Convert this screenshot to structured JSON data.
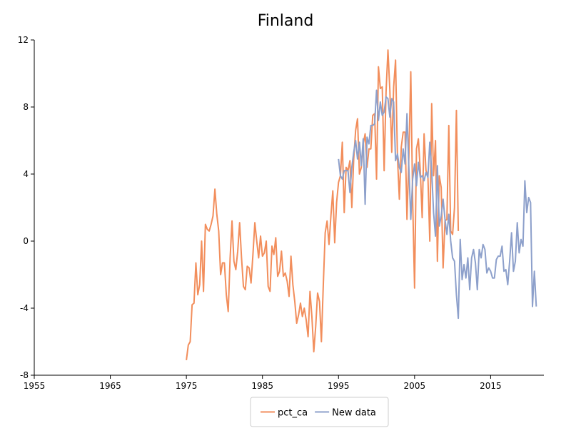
{
  "chart_data": {
    "type": "line",
    "title": "Finland",
    "xlabel": "",
    "ylabel": "",
    "xlim": [
      1955,
      2022
    ],
    "ylim": [
      -8,
      12
    ],
    "x_ticks": [
      1955,
      1965,
      1975,
      1985,
      1995,
      2005,
      2015
    ],
    "y_ticks": [
      -8,
      -4,
      0,
      4,
      8,
      12
    ],
    "grid": false,
    "legend_position": "bottom-center",
    "series": [
      {
        "name": "pct_ca",
        "color": "#f28e5c",
        "points": [
          [
            1975.0,
            -7.1
          ],
          [
            1975.25,
            -6.2
          ],
          [
            1975.5,
            -6.0
          ],
          [
            1975.75,
            -3.8
          ],
          [
            1976.0,
            -3.7
          ],
          [
            1976.25,
            -1.3
          ],
          [
            1976.5,
            -3.2
          ],
          [
            1976.75,
            -2.6
          ],
          [
            1977.0,
            0.0
          ],
          [
            1977.25,
            -3.0
          ],
          [
            1977.5,
            1.0
          ],
          [
            1977.75,
            0.7
          ],
          [
            1978.0,
            0.6
          ],
          [
            1978.25,
            1.0
          ],
          [
            1978.5,
            1.5
          ],
          [
            1978.75,
            3.1
          ],
          [
            1979.0,
            1.6
          ],
          [
            1979.25,
            0.6
          ],
          [
            1979.5,
            -2.0
          ],
          [
            1979.75,
            -1.3
          ],
          [
            1980.0,
            -1.3
          ],
          [
            1980.25,
            -3.2
          ],
          [
            1980.5,
            -4.2
          ],
          [
            1980.75,
            -1.0
          ],
          [
            1981.0,
            1.2
          ],
          [
            1981.25,
            -1.2
          ],
          [
            1981.5,
            -1.7
          ],
          [
            1981.75,
            -0.6
          ],
          [
            1982.0,
            1.1
          ],
          [
            1982.25,
            -1.0
          ],
          [
            1982.5,
            -2.7
          ],
          [
            1982.75,
            -2.9
          ],
          [
            1983.0,
            -1.5
          ],
          [
            1983.25,
            -1.6
          ],
          [
            1983.5,
            -2.5
          ],
          [
            1983.75,
            -0.8
          ],
          [
            1984.0,
            1.1
          ],
          [
            1984.25,
            0.0
          ],
          [
            1984.5,
            -1.0
          ],
          [
            1984.75,
            0.3
          ],
          [
            1985.0,
            -0.9
          ],
          [
            1985.25,
            -0.7
          ],
          [
            1985.5,
            0.0
          ],
          [
            1985.75,
            -2.7
          ],
          [
            1986.0,
            -3.0
          ],
          [
            1986.25,
            -0.3
          ],
          [
            1986.5,
            -0.8
          ],
          [
            1986.75,
            0.2
          ],
          [
            1987.0,
            -2.1
          ],
          [
            1987.25,
            -1.8
          ],
          [
            1987.5,
            -0.6
          ],
          [
            1987.75,
            -2.1
          ],
          [
            1988.0,
            -1.9
          ],
          [
            1988.25,
            -2.4
          ],
          [
            1988.5,
            -3.3
          ],
          [
            1988.75,
            -0.9
          ],
          [
            1989.0,
            -2.6
          ],
          [
            1989.25,
            -3.6
          ],
          [
            1989.5,
            -4.9
          ],
          [
            1989.75,
            -4.4
          ],
          [
            1990.0,
            -3.7
          ],
          [
            1990.25,
            -4.5
          ],
          [
            1990.5,
            -4.0
          ],
          [
            1990.75,
            -4.7
          ],
          [
            1991.0,
            -5.7
          ],
          [
            1991.25,
            -3.0
          ],
          [
            1991.5,
            -4.5
          ],
          [
            1991.75,
            -6.6
          ],
          [
            1992.0,
            -5.1
          ],
          [
            1992.25,
            -3.1
          ],
          [
            1992.5,
            -3.6
          ],
          [
            1992.75,
            -6.0
          ],
          [
            1993.0,
            -2.6
          ],
          [
            1993.25,
            0.5
          ],
          [
            1993.5,
            1.2
          ],
          [
            1993.75,
            -0.2
          ],
          [
            1994.0,
            1.5
          ],
          [
            1994.25,
            3.0
          ],
          [
            1994.5,
            -0.1
          ],
          [
            1994.75,
            2.3
          ],
          [
            1995.0,
            3.5
          ],
          [
            1995.25,
            3.9
          ],
          [
            1995.5,
            5.9
          ],
          [
            1995.75,
            1.7
          ],
          [
            1996.0,
            4.4
          ],
          [
            1996.25,
            4.2
          ],
          [
            1996.5,
            4.8
          ],
          [
            1996.75,
            2.0
          ],
          [
            1997.0,
            4.9
          ],
          [
            1997.25,
            6.6
          ],
          [
            1997.5,
            7.3
          ],
          [
            1997.75,
            4.0
          ],
          [
            1998.0,
            4.4
          ],
          [
            1998.25,
            5.8
          ],
          [
            1998.5,
            6.4
          ],
          [
            1998.75,
            4.4
          ],
          [
            1999.0,
            5.5
          ],
          [
            1999.25,
            5.5
          ],
          [
            1999.5,
            7.5
          ],
          [
            1999.75,
            7.6
          ],
          [
            2000.0,
            3.7
          ],
          [
            2000.25,
            10.4
          ],
          [
            2000.5,
            9.1
          ],
          [
            2000.75,
            9.2
          ],
          [
            2001.0,
            4.2
          ],
          [
            2001.25,
            8.9
          ],
          [
            2001.5,
            11.4
          ],
          [
            2001.75,
            9.0
          ],
          [
            2002.0,
            5.3
          ],
          [
            2002.25,
            9.2
          ],
          [
            2002.5,
            10.8
          ],
          [
            2002.75,
            5.0
          ],
          [
            2003.0,
            2.5
          ],
          [
            2003.25,
            5.6
          ],
          [
            2003.5,
            6.5
          ],
          [
            2003.75,
            6.5
          ],
          [
            2004.0,
            1.3
          ],
          [
            2004.25,
            5.0
          ],
          [
            2004.5,
            10.1
          ],
          [
            2004.75,
            2.4
          ],
          [
            2005.0,
            -2.8
          ],
          [
            2005.25,
            5.5
          ],
          [
            2005.5,
            6.1
          ],
          [
            2005.75,
            4.2
          ],
          [
            2006.0,
            1.4
          ],
          [
            2006.25,
            6.4
          ],
          [
            2006.5,
            4.2
          ],
          [
            2006.75,
            3.9
          ],
          [
            2007.0,
            0.0
          ],
          [
            2007.25,
            8.2
          ],
          [
            2007.5,
            3.9
          ],
          [
            2007.75,
            6.0
          ],
          [
            2008.0,
            -1.2
          ],
          [
            2008.25,
            3.9
          ],
          [
            2008.5,
            3.2
          ],
          [
            2008.75,
            -1.6
          ],
          [
            2009.0,
            1.2
          ],
          [
            2009.25,
            1.3
          ],
          [
            2009.5,
            6.9
          ],
          [
            2009.75,
            0.6
          ],
          [
            2010.0,
            0.4
          ],
          [
            2010.25,
            2.0
          ],
          [
            2010.5,
            7.8
          ],
          [
            2010.75,
            0.6
          ]
        ]
      },
      {
        "name": "New data",
        "color": "#8da0cb",
        "points": [
          [
            1995.0,
            4.9
          ],
          [
            1995.25,
            3.9
          ],
          [
            1995.5,
            3.7
          ],
          [
            1995.75,
            4.2
          ],
          [
            1996.0,
            4.2
          ],
          [
            1996.25,
            4.2
          ],
          [
            1996.5,
            2.9
          ],
          [
            1996.75,
            4.4
          ],
          [
            1997.0,
            5.3
          ],
          [
            1997.25,
            6.0
          ],
          [
            1997.5,
            4.9
          ],
          [
            1997.75,
            5.9
          ],
          [
            1998.0,
            4.5
          ],
          [
            1998.25,
            6.1
          ],
          [
            1998.5,
            2.2
          ],
          [
            1998.75,
            6.2
          ],
          [
            1999.0,
            5.8
          ],
          [
            1999.25,
            6.9
          ],
          [
            1999.5,
            6.9
          ],
          [
            1999.75,
            7.0
          ],
          [
            2000.0,
            9.0
          ],
          [
            2000.25,
            7.2
          ],
          [
            2000.5,
            8.3
          ],
          [
            2000.75,
            7.5
          ],
          [
            2001.0,
            7.7
          ],
          [
            2001.25,
            8.6
          ],
          [
            2001.5,
            8.5
          ],
          [
            2001.75,
            7.4
          ],
          [
            2002.0,
            8.5
          ],
          [
            2002.25,
            8.3
          ],
          [
            2002.5,
            4.8
          ],
          [
            2002.75,
            5.2
          ],
          [
            2003.0,
            4.4
          ],
          [
            2003.25,
            4.1
          ],
          [
            2003.5,
            5.5
          ],
          [
            2003.75,
            4.6
          ],
          [
            2004.0,
            7.6
          ],
          [
            2004.25,
            4.4
          ],
          [
            2004.5,
            1.3
          ],
          [
            2004.75,
            3.7
          ],
          [
            2005.0,
            4.6
          ],
          [
            2005.25,
            3.3
          ],
          [
            2005.5,
            4.7
          ],
          [
            2005.75,
            3.8
          ],
          [
            2006.0,
            3.9
          ],
          [
            2006.25,
            3.6
          ],
          [
            2006.5,
            4.1
          ],
          [
            2006.75,
            3.8
          ],
          [
            2007.0,
            5.9
          ],
          [
            2007.25,
            4.2
          ],
          [
            2007.5,
            1.7
          ],
          [
            2007.75,
            0.3
          ],
          [
            2008.0,
            4.5
          ],
          [
            2008.25,
            0.9
          ],
          [
            2008.5,
            1.5
          ],
          [
            2008.75,
            2.5
          ],
          [
            2009.0,
            1.3
          ],
          [
            2009.25,
            0.4
          ],
          [
            2009.5,
            1.6
          ],
          [
            2009.75,
            0.0
          ],
          [
            2010.0,
            -1.0
          ],
          [
            2010.25,
            -1.2
          ],
          [
            2010.5,
            -3.2
          ],
          [
            2010.75,
            -4.6
          ],
          [
            2011.0,
            0.1
          ],
          [
            2011.25,
            -2.3
          ],
          [
            2011.5,
            -1.4
          ],
          [
            2011.75,
            -2.2
          ],
          [
            2012.0,
            -1.0
          ],
          [
            2012.25,
            -2.9
          ],
          [
            2012.5,
            -1.0
          ],
          [
            2012.75,
            -0.5
          ],
          [
            2013.0,
            -1.3
          ],
          [
            2013.25,
            -2.9
          ],
          [
            2013.5,
            -0.5
          ],
          [
            2013.75,
            -1.0
          ],
          [
            2014.0,
            -0.2
          ],
          [
            2014.25,
            -0.5
          ],
          [
            2014.5,
            -1.9
          ],
          [
            2014.75,
            -1.6
          ],
          [
            2015.0,
            -1.8
          ],
          [
            2015.25,
            -2.2
          ],
          [
            2015.5,
            -2.2
          ],
          [
            2015.75,
            -1.1
          ],
          [
            2016.0,
            -0.9
          ],
          [
            2016.25,
            -0.9
          ],
          [
            2016.5,
            -0.3
          ],
          [
            2016.75,
            -1.8
          ],
          [
            2017.0,
            -1.7
          ],
          [
            2017.25,
            -2.6
          ],
          [
            2017.5,
            -1.2
          ],
          [
            2017.75,
            0.5
          ],
          [
            2018.0,
            -1.8
          ],
          [
            2018.25,
            -1.2
          ],
          [
            2018.5,
            1.1
          ],
          [
            2018.75,
            -0.7
          ],
          [
            2019.0,
            0.1
          ],
          [
            2019.25,
            -0.3
          ],
          [
            2019.5,
            3.6
          ],
          [
            2019.75,
            1.7
          ],
          [
            2020.0,
            2.6
          ],
          [
            2020.25,
            2.3
          ],
          [
            2020.5,
            -3.9
          ],
          [
            2020.75,
            -1.8
          ],
          [
            2021.0,
            -3.9
          ]
        ]
      }
    ]
  }
}
